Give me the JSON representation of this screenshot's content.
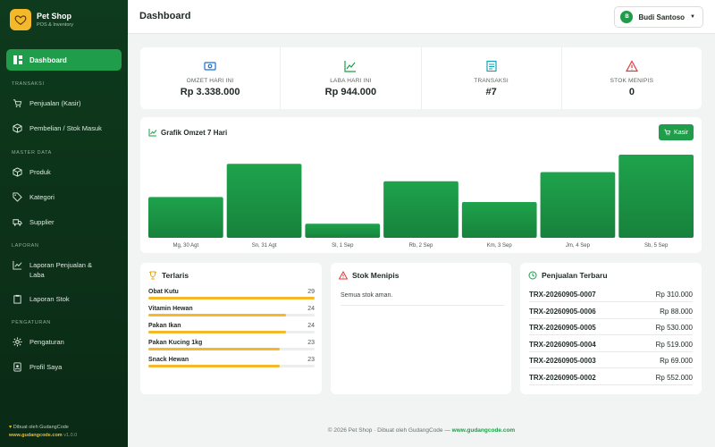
{
  "brand": {
    "title": "Pet Shop",
    "subtitle": "POS & Inventory"
  },
  "sidebar": {
    "active": "Dashboard",
    "sections": [
      "TRANSAKSI",
      "MASTER DATA",
      "LAPORAN",
      "PENGATURAN"
    ],
    "items": [
      "Penjualan (Kasir)",
      "Pembelian / Stok Masuk",
      "Produk",
      "Kategori",
      "Supplier",
      "Laporan Penjualan & Laba",
      "Laporan Stok",
      "Pengaturan",
      "Profil Saya"
    ],
    "footer": {
      "made_by": "Dibuat oleh GudangCode",
      "link": "www.gudangcode.com",
      "version": "v1.0.0"
    }
  },
  "header": {
    "title": "Dashboard",
    "user_initial": "B",
    "user_name": "Budi Santoso"
  },
  "stats": [
    {
      "label": "OMZET HARI INI",
      "value": "Rp 3.338.000",
      "icon": "cash-icon"
    },
    {
      "label": "LABA HARI INI",
      "value": "Rp 944.000",
      "icon": "trend-up-icon"
    },
    {
      "label": "TRANSAKSI",
      "value": "#7",
      "icon": "receipt-icon"
    },
    {
      "label": "STOK MENIPIS",
      "value": "0",
      "icon": "warning-icon"
    }
  ],
  "chart": {
    "title": "Grafik Omzet 7 Hari",
    "kasir_label": "Kasir"
  },
  "chart_data": {
    "type": "bar",
    "categories": [
      "Mg, 30 Agt",
      "Sn, 31 Agt",
      "Sl, 1 Sep",
      "Rb, 2 Sep",
      "Km, 3 Sep",
      "Jm, 4 Sep",
      "Sb, 5 Sep"
    ],
    "values": [
      0.49,
      0.89,
      0.17,
      0.68,
      0.43,
      0.79,
      1.0
    ],
    "color": "#1f9d4a",
    "grid": false,
    "legend": "none"
  },
  "terlaris": {
    "title": "Terlaris",
    "items": [
      {
        "name": "Obat Kutu",
        "count": "29",
        "ratio": 1.0
      },
      {
        "name": "Vitamin Hewan",
        "count": "24",
        "ratio": 0.83
      },
      {
        "name": "Pakan Ikan",
        "count": "24",
        "ratio": 0.83
      },
      {
        "name": "Pakan Kucing 1kg",
        "count": "23",
        "ratio": 0.79
      },
      {
        "name": "Snack Hewan",
        "count": "23",
        "ratio": 0.79
      }
    ]
  },
  "stok_menipis": {
    "title": "Stok Menipis",
    "message": "Semua stok aman."
  },
  "penjualan": {
    "title": "Penjualan Terbaru",
    "rows": [
      {
        "trx": "TRX-20260905-0007",
        "amount": "Rp 310.000"
      },
      {
        "trx": "TRX-20260905-0006",
        "amount": "Rp 88.000"
      },
      {
        "trx": "TRX-20260905-0005",
        "amount": "Rp 530.000"
      },
      {
        "trx": "TRX-20260905-0004",
        "amount": "Rp 519.000"
      },
      {
        "trx": "TRX-20260905-0003",
        "amount": "Rp 69.000"
      },
      {
        "trx": "TRX-20260905-0002",
        "amount": "Rp 552.000"
      }
    ]
  },
  "footer": {
    "text": "© 2026 Pet Shop · Dibuat oleh GudangCode — ",
    "link": "www.gudangcode.com"
  },
  "colors": {
    "sidebar": "#0e3a1d",
    "accent": "#1f9d4a",
    "gold": "#f5b82a",
    "warning": "#e03b3b"
  }
}
